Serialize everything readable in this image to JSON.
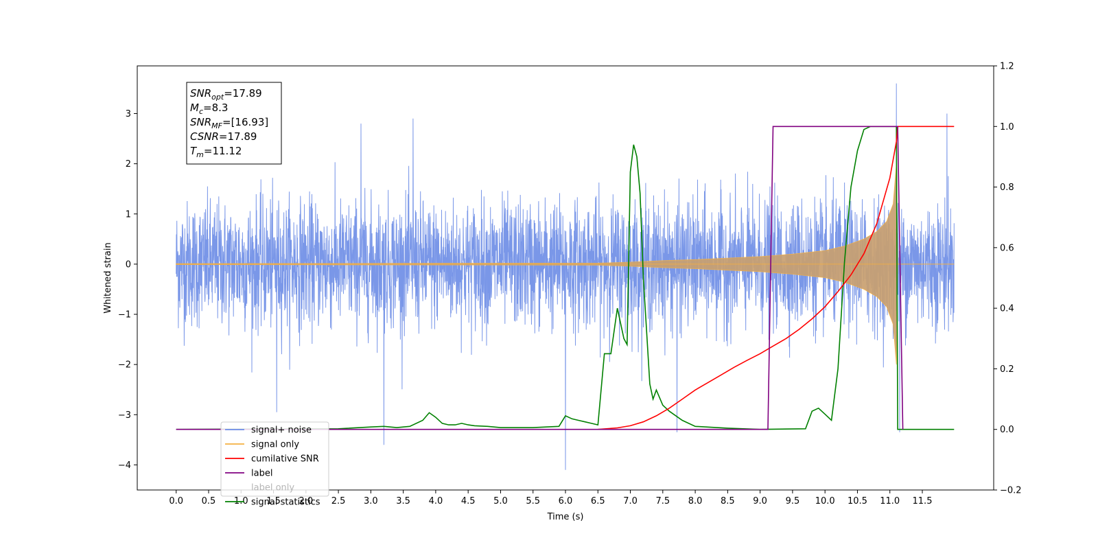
{
  "chart_data": {
    "type": "line",
    "title": "",
    "xlabel": "Time (s)",
    "ylabel": "Whitened strain",
    "xlim": [
      -0.6,
      12.6
    ],
    "ylim": [
      -4.5,
      3.95
    ],
    "y2lim": [
      -0.2,
      1.2
    ],
    "x_ticks": [
      0.0,
      0.5,
      1.0,
      1.5,
      2.0,
      2.5,
      3.0,
      3.5,
      4.0,
      4.5,
      5.0,
      5.5,
      6.0,
      6.5,
      7.0,
      7.5,
      8.0,
      8.5,
      9.0,
      9.5,
      10.0,
      10.5,
      11.0,
      11.5
    ],
    "x_tick_labels": [
      "0.0",
      "0.5",
      "1.0",
      "1.5",
      "2.0",
      "2.5",
      "3.0",
      "3.5",
      "4.0",
      "4.5",
      "5.0",
      "5.5",
      "6.0",
      "6.5",
      "7.0",
      "7.5",
      "8.0",
      "8.5",
      "9.0",
      "9.5",
      "10.0",
      "10.5",
      "11.0",
      "11.5"
    ],
    "y_ticks": [
      -4,
      -3,
      -2,
      -1,
      0,
      1,
      2,
      3
    ],
    "y_tick_labels": [
      "−4",
      "−3",
      "−2",
      "−1",
      "0",
      "1",
      "2",
      "3"
    ],
    "y2_ticks": [
      -0.2,
      0.0,
      0.2,
      0.4,
      0.6,
      0.8,
      1.0,
      1.2
    ],
    "y2_tick_labels": [
      "−0.2",
      "0.0",
      "0.2",
      "0.4",
      "0.6",
      "0.8",
      "1.0",
      "1.2"
    ],
    "grid": false,
    "legend_position": "lower-left",
    "stats_box": [
      {
        "sym": "SNR",
        "sub": "opt",
        "value": "=17.89"
      },
      {
        "sym": "M",
        "sub": "c",
        "value": "=8.3"
      },
      {
        "sym": "SNR",
        "sub": "MF",
        "value": "=[16.93]"
      },
      {
        "sym": "CSNR",
        "sub": "",
        "value": "=17.89"
      },
      {
        "sym": "T",
        "sub": "m",
        "value": "=11.12"
      }
    ],
    "series": [
      {
        "name": "signal+ noise",
        "color": "#6b8ce6",
        "axis": "left",
        "description_values": {
          "t_start": 0.0,
          "t_end": 11.99,
          "typical_amplitude": 1.3,
          "max": 3.6,
          "min": -4.1
        },
        "spikes": [
          [
            1.55,
            -2.95
          ],
          [
            3.2,
            -3.6
          ],
          [
            6.0,
            -4.1
          ],
          [
            7.72,
            -3.35
          ],
          [
            11.1,
            3.6
          ],
          [
            11.15,
            -3.35
          ],
          [
            11.88,
            3.0
          ],
          [
            3.65,
            2.9
          ],
          [
            2.85,
            2.8
          ]
        ]
      },
      {
        "name": "signal only",
        "color": "#f5b041",
        "axis": "left",
        "envelope": [
          [
            0.0,
            0.01
          ],
          [
            6.5,
            0.02
          ],
          [
            7.0,
            0.04
          ],
          [
            7.5,
            0.07
          ],
          [
            8.0,
            0.09
          ],
          [
            8.5,
            0.12
          ],
          [
            9.0,
            0.15
          ],
          [
            9.5,
            0.2
          ],
          [
            10.0,
            0.27
          ],
          [
            10.3,
            0.36
          ],
          [
            10.6,
            0.5
          ],
          [
            10.8,
            0.65
          ],
          [
            10.95,
            0.85
          ],
          [
            11.05,
            1.2
          ],
          [
            11.1,
            2.0
          ],
          [
            11.12,
            0.0
          ],
          [
            11.99,
            0.0
          ]
        ]
      },
      {
        "name": "cumilative SNR",
        "color": "#ff0000",
        "axis": "right",
        "x": [
          6.5,
          6.8,
          7.0,
          7.2,
          7.4,
          7.6,
          7.8,
          8.0,
          8.2,
          8.4,
          8.6,
          8.8,
          9.0,
          9.2,
          9.4,
          9.6,
          9.8,
          10.0,
          10.2,
          10.4,
          10.6,
          10.8,
          11.0,
          11.1,
          11.12,
          11.99
        ],
        "values": [
          0.0,
          0.005,
          0.012,
          0.025,
          0.045,
          0.07,
          0.1,
          0.13,
          0.155,
          0.18,
          0.205,
          0.228,
          0.25,
          0.275,
          0.3,
          0.33,
          0.365,
          0.405,
          0.455,
          0.51,
          0.58,
          0.68,
          0.83,
          0.95,
          1.0,
          1.0
        ]
      },
      {
        "name": "label",
        "color": "#800080",
        "axis": "right",
        "x": [
          0.0,
          9.12,
          9.2,
          11.05,
          11.12,
          11.2
        ],
        "values": [
          0.0,
          0.0,
          1.0,
          1.0,
          1.0,
          0.0
        ]
      },
      {
        "name": "label only",
        "color": "#aaaaaa",
        "axis": "right",
        "x": [],
        "values": []
      },
      {
        "name": "signal statistics",
        "color": "#008000",
        "axis": "right",
        "x": [
          0.0,
          2.5,
          3.0,
          3.2,
          3.4,
          3.6,
          3.8,
          3.9,
          4.0,
          4.1,
          4.2,
          4.3,
          4.4,
          4.5,
          4.6,
          4.8,
          5.0,
          5.5,
          5.9,
          6.0,
          6.1,
          6.2,
          6.3,
          6.4,
          6.5,
          6.6,
          6.7,
          6.8,
          6.9,
          6.95,
          7.0,
          7.05,
          7.1,
          7.15,
          7.2,
          7.3,
          7.35,
          7.4,
          7.5,
          7.6,
          7.8,
          8.0,
          8.5,
          9.0,
          9.7,
          9.8,
          9.9,
          10.0,
          10.1,
          10.2,
          10.3,
          10.4,
          10.5,
          10.6,
          10.7,
          11.0,
          11.1,
          11.12,
          11.99
        ],
        "values": [
          0.0,
          0.002,
          0.008,
          0.01,
          0.006,
          0.01,
          0.03,
          0.055,
          0.04,
          0.02,
          0.015,
          0.015,
          0.02,
          0.015,
          0.012,
          0.01,
          0.006,
          0.006,
          0.01,
          0.045,
          0.035,
          0.03,
          0.025,
          0.02,
          0.015,
          0.25,
          0.25,
          0.4,
          0.3,
          0.28,
          0.85,
          0.94,
          0.9,
          0.78,
          0.5,
          0.15,
          0.1,
          0.13,
          0.08,
          0.06,
          0.03,
          0.01,
          0.004,
          0.0,
          0.002,
          0.06,
          0.07,
          0.05,
          0.03,
          0.2,
          0.55,
          0.8,
          0.92,
          0.99,
          1.0,
          1.0,
          1.0,
          0.0,
          0.0
        ]
      }
    ]
  }
}
